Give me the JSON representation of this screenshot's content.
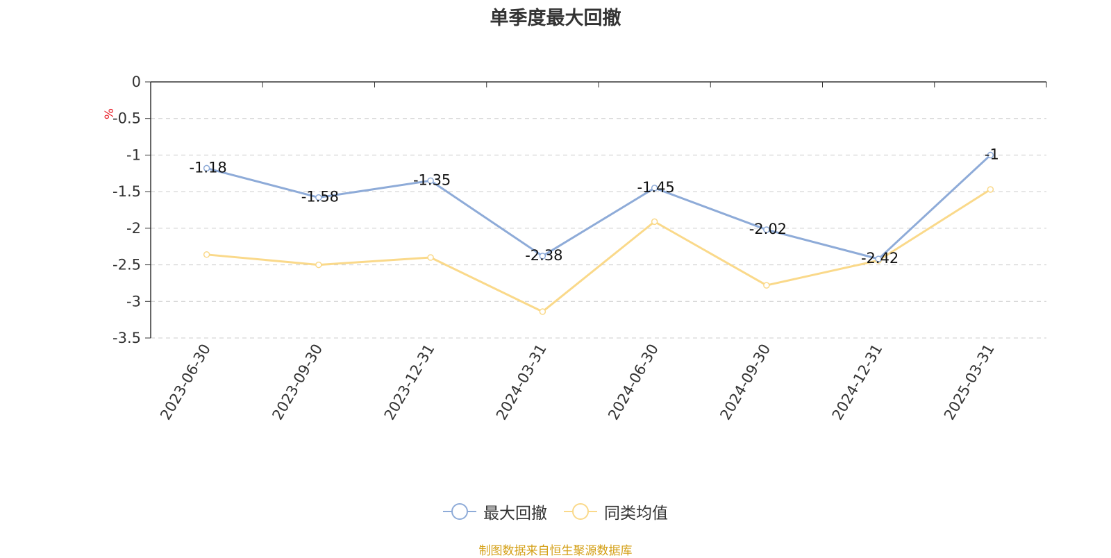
{
  "chart_data": {
    "type": "line",
    "title": "单季度最大回撤",
    "ylabel": "%",
    "categories": [
      "2023-06-30",
      "2023-09-30",
      "2023-12-31",
      "2024-03-31",
      "2024-06-30",
      "2024-09-30",
      "2024-12-31",
      "2025-03-31"
    ],
    "ylim": [
      -3.5,
      0
    ],
    "yticks": [
      "0",
      "-0.5",
      "-1",
      "-1.5",
      "-2",
      "-2.5",
      "-3",
      "-3.5"
    ],
    "series": [
      {
        "name": "最大回撤",
        "color": "#8eabd8",
        "values": [
          -1.18,
          -1.58,
          -1.35,
          -2.38,
          -1.45,
          -2.02,
          -2.42,
          -1
        ],
        "labels": [
          "-1.18",
          "-1.58",
          "-1.35",
          "-2.38",
          "-1.45",
          "-2.02",
          "-2.42",
          "-1"
        ]
      },
      {
        "name": "同类均值",
        "color": "#fad98a",
        "values": [
          -2.36,
          -2.5,
          -2.4,
          -3.14,
          -1.91,
          -2.78,
          -2.44,
          -1.47
        ]
      }
    ],
    "grid": true
  },
  "source": "制图数据来自恒生聚源数据库",
  "colors": {
    "unit": "#e8202a",
    "axis": "#333333",
    "grid": "#cccccc"
  }
}
